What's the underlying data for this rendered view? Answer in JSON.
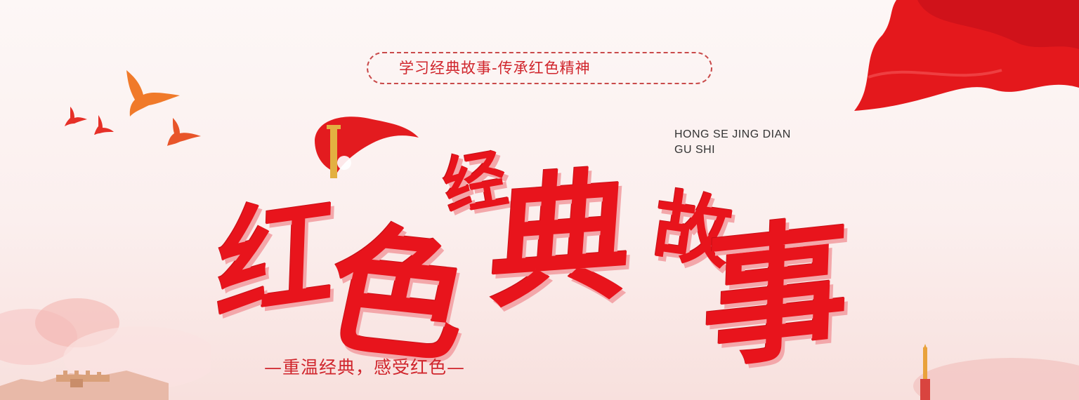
{
  "slogan": "学习经典故事-传承红色精神",
  "pinyin": {
    "line1": "HONG SE JING DIAN",
    "line2": "GU SHI"
  },
  "title": {
    "c1": "红",
    "c2": "色",
    "c3": "经",
    "c4": "典",
    "c5": "故",
    "c6": "事"
  },
  "subtitle": "—重温经典，感受红色—",
  "colors": {
    "primary_red": "#e8141c",
    "text_red": "#d0252c",
    "background": "#fdf7f6"
  },
  "decor": [
    "red-flag",
    "doves",
    "emblem",
    "great-wall",
    "tower",
    "clouds"
  ]
}
